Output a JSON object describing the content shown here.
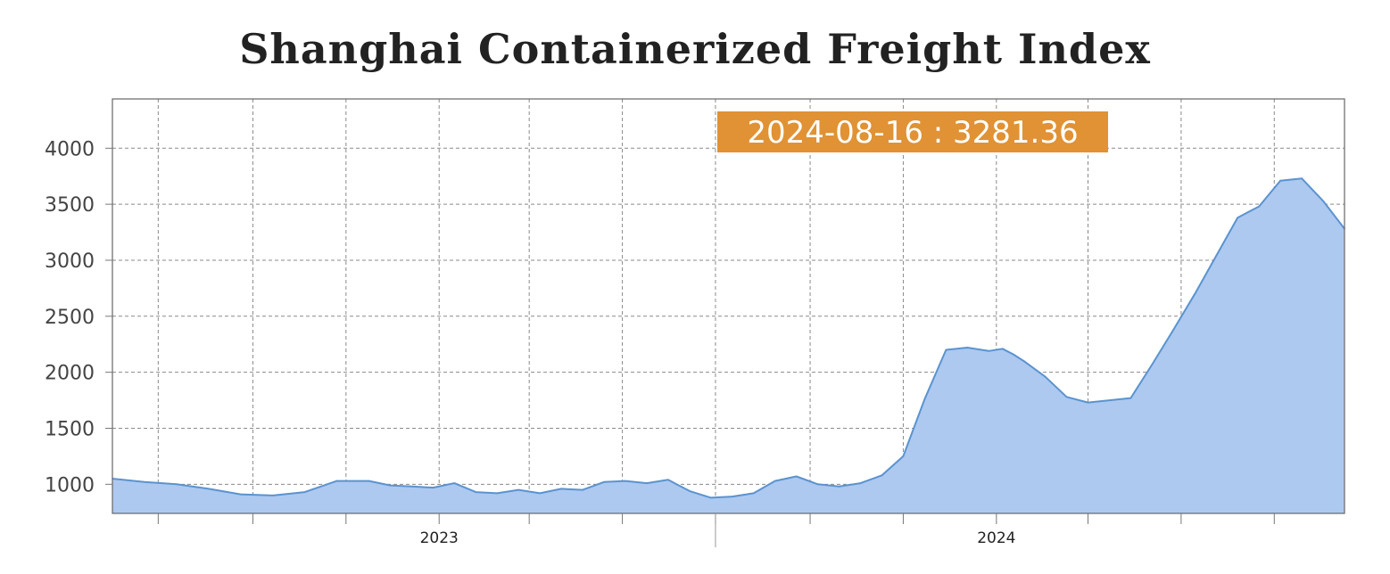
{
  "chart_data": {
    "type": "area",
    "title": "Shanghai Containerized Freight Index",
    "x_labels": [
      "2023",
      "2024"
    ],
    "yticks": [
      1000,
      1500,
      2000,
      2500,
      3000,
      3500,
      4000
    ],
    "ylim": [
      740,
      4440
    ],
    "grid": true,
    "tooltip": "2024-08-16 : 3281.36",
    "colors": {
      "fill": "#adc9f0",
      "line": "#5b93cf",
      "tooltip_bg": "#e09234"
    },
    "series": [
      {
        "x": [
          "2022-06-01",
          "2022-06-22",
          "2022-07-13",
          "2022-08-03",
          "2022-08-24",
          "2022-09-14",
          "2022-10-05",
          "2022-10-26",
          "2022-11-16",
          "2022-11-30",
          "2022-12-14",
          "2022-12-28",
          "2023-01-11",
          "2023-01-25",
          "2023-02-08",
          "2023-02-22",
          "2023-03-08",
          "2023-03-22",
          "2023-04-05",
          "2023-04-19",
          "2023-05-03",
          "2023-05-17",
          "2023-05-31",
          "2023-06-14",
          "2023-06-28",
          "2023-07-12",
          "2023-07-26",
          "2023-08-09",
          "2023-08-23",
          "2023-09-06",
          "2023-09-20",
          "2023-10-04",
          "2023-10-18",
          "2023-11-01",
          "2023-11-15",
          "2023-11-29",
          "2023-12-13",
          "2023-12-27",
          "2024-01-05",
          "2024-01-12",
          "2024-01-19",
          "2024-02-02",
          "2024-02-16",
          "2024-03-01",
          "2024-03-15",
          "2024-03-29",
          "2024-04-12",
          "2024-04-26",
          "2024-05-10",
          "2024-05-24",
          "2024-06-07",
          "2024-06-21",
          "2024-07-05",
          "2024-07-19",
          "2024-08-02",
          "2024-08-16"
        ],
        "y": [
          1050,
          1020,
          1000,
          960,
          910,
          900,
          930,
          1030,
          1030,
          990,
          980,
          970,
          1010,
          930,
          920,
          950,
          920,
          960,
          950,
          1020,
          1030,
          1010,
          1040,
          940,
          880,
          890,
          920,
          1030,
          1070,
          1000,
          980,
          1010,
          1080,
          1250,
          1760,
          2200,
          2220,
          2190,
          2210,
          2160,
          2100,
          1960,
          1780,
          1730,
          1750,
          1770,
          2070,
          2380,
          2700,
          3040,
          3380,
          3480,
          3710,
          3730,
          3530,
          3281.36
        ]
      }
    ]
  }
}
